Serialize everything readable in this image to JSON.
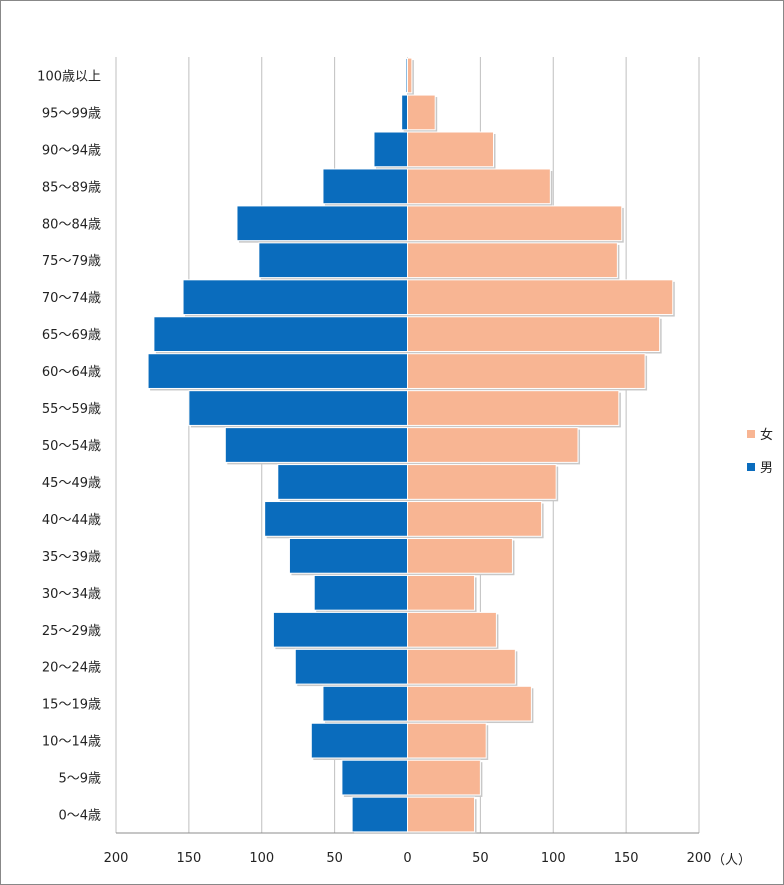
{
  "chart_data": {
    "type": "bar",
    "orientation": "horizontal",
    "layout": "population-pyramid",
    "categories": [
      "100歳以上",
      "95〜99歳",
      "90〜94歳",
      "85〜89歳",
      "80〜84歳",
      "75〜79歳",
      "70〜74歳",
      "65〜69歳",
      "60〜64歳",
      "55〜59歳",
      "50〜54歳",
      "45〜49歳",
      "40〜44歳",
      "35〜39歳",
      "30〜34歳",
      "25〜29歳",
      "20〜24歳",
      "15〜19歳",
      "10〜14歳",
      "5〜9歳",
      "0〜4歳"
    ],
    "series": [
      {
        "name": "女",
        "side": "right",
        "color": "#F8B593",
        "values": [
          3,
          19,
          59,
          98,
          147,
          144,
          182,
          173,
          163,
          145,
          117,
          102,
          92,
          72,
          46,
          61,
          74,
          85,
          54,
          50,
          46
        ]
      },
      {
        "name": "男",
        "side": "left",
        "color": "#0A6CBD",
        "values": [
          1,
          4,
          23,
          58,
          117,
          102,
          154,
          174,
          178,
          150,
          125,
          89,
          98,
          81,
          64,
          92,
          77,
          58,
          66,
          45,
          38
        ]
      }
    ],
    "xlim": [
      -200,
      200
    ],
    "x_ticks": [
      "200",
      "150",
      "100",
      "50",
      "0",
      "50",
      "100",
      "150",
      "200"
    ],
    "x_unit": "（人）",
    "xlabel": "",
    "ylabel": "",
    "title": "",
    "grid": "vertical",
    "legend": {
      "position": "right",
      "entries": [
        "女",
        "男"
      ]
    }
  }
}
